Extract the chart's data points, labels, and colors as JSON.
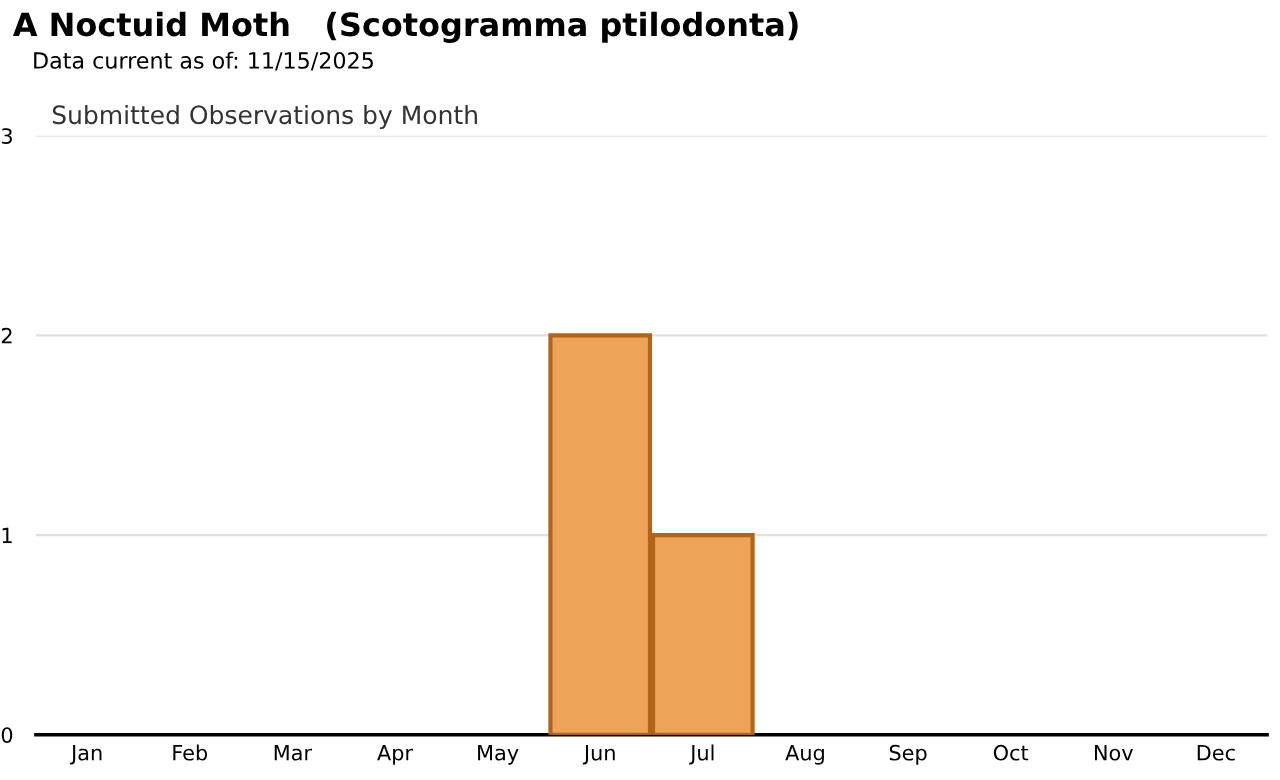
{
  "chart_data": {
    "type": "bar",
    "title": "A Noctuid Moth   (Scotogramma ptilodonta)",
    "subtitle": "Data current as of: 11/15/2025",
    "annotations": [
      "Submitted Observations by Month"
    ],
    "categories": [
      "Jan",
      "Feb",
      "Mar",
      "Apr",
      "May",
      "Jun",
      "Jul",
      "Aug",
      "Sep",
      "Oct",
      "Nov",
      "Dec"
    ],
    "values": [
      0,
      0,
      0,
      0,
      0,
      2,
      1,
      0,
      0,
      0,
      0,
      0
    ],
    "color": "#eda458",
    "ylim": [
      0,
      3
    ],
    "yticks": [
      0,
      1,
      2,
      3
    ],
    "grid": "y",
    "legend": false
  }
}
